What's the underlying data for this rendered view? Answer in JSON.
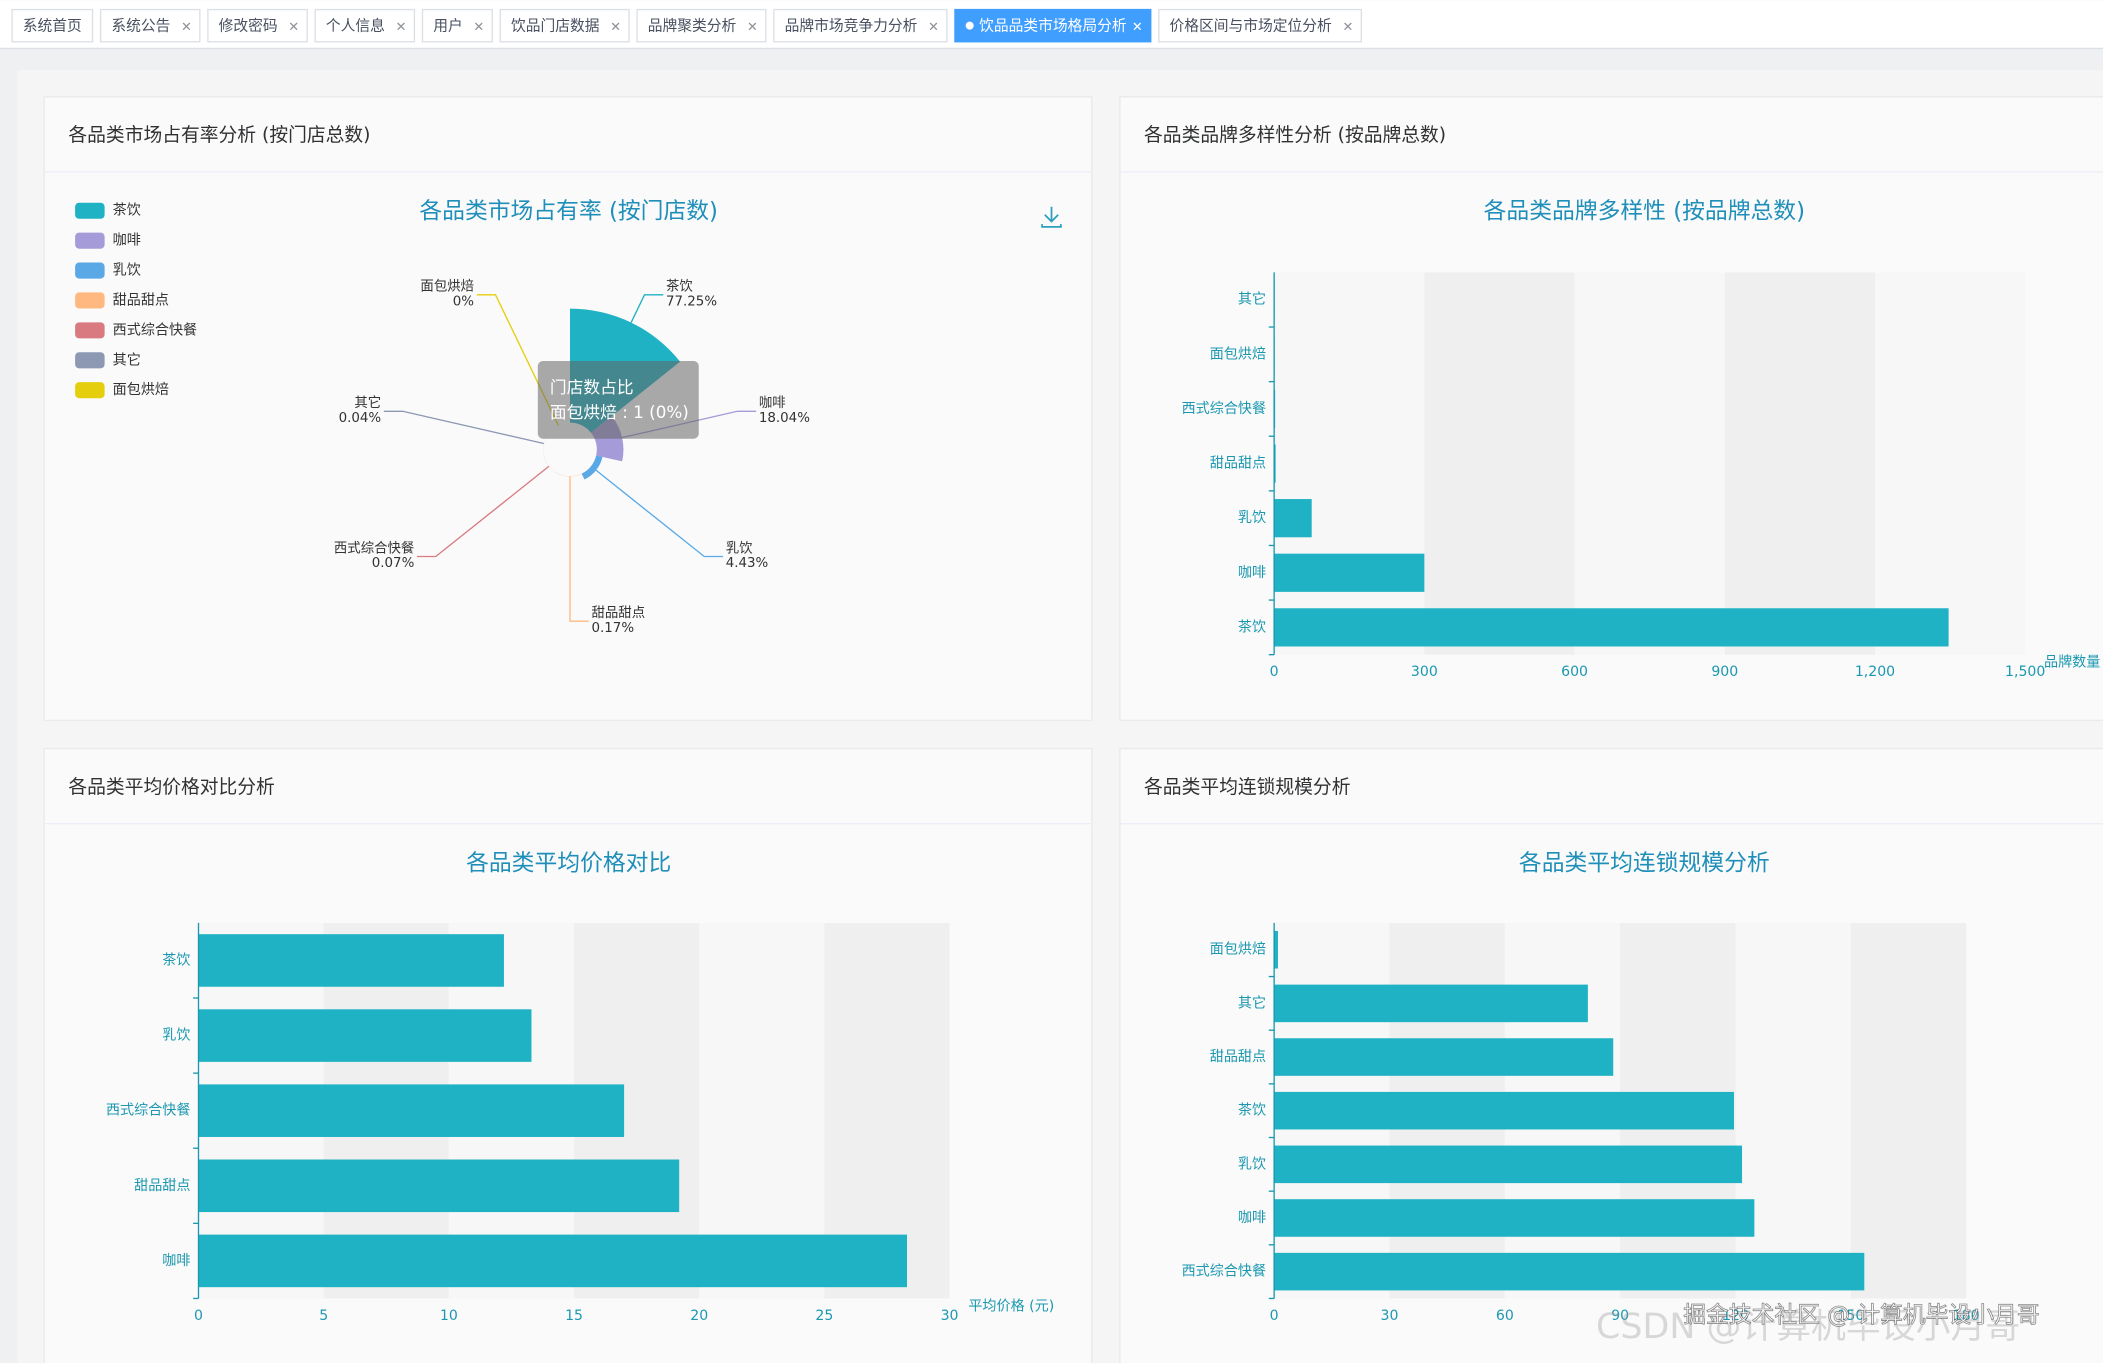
{
  "tabs": [
    {
      "label": "系统首页",
      "closable": false
    },
    {
      "label": "系统公告",
      "closable": true
    },
    {
      "label": "修改密码",
      "closable": true
    },
    {
      "label": "个人信息",
      "closable": true
    },
    {
      "label": "用户",
      "closable": true
    },
    {
      "label": "饮品门店数据",
      "closable": true
    },
    {
      "label": "品牌聚类分析",
      "closable": true
    },
    {
      "label": "品牌市场竞争力分析",
      "closable": true
    },
    {
      "label": "饮品品类市场格局分析",
      "closable": true,
      "active": true
    },
    {
      "label": "价格区间与市场定位分析",
      "closable": true
    }
  ],
  "panels": [
    {
      "title": "各品类市场占有率分析 (按门店总数)"
    },
    {
      "title": "各品类品牌多样性分析 (按品牌总数)"
    },
    {
      "title": "各品类平均价格对比分析"
    },
    {
      "title": "各品类平均连锁规模分析"
    }
  ],
  "chart_data": [
    {
      "type": "pie",
      "rose": true,
      "title": "各品类市场占有率 (按门店数)",
      "legend": "top-left",
      "categories": [
        "茶饮",
        "咖啡",
        "乳饮",
        "甜品甜点",
        "西式综合快餐",
        "其它",
        "面包烘焙"
      ],
      "values": [
        77.25,
        18.04,
        4.43,
        0.17,
        0.07,
        0.04,
        0
      ],
      "value_labels": [
        "77.25%",
        "18.04%",
        "4.43%",
        "0.17%",
        "0.07%",
        "0.04%",
        "0%"
      ],
      "colors": [
        "#1fb2c4",
        "#a59bd8",
        "#5aa9e6",
        "#ffb980",
        "#d87a80",
        "#8d98b3",
        "#e5cf0d"
      ],
      "tooltip": {
        "title": "门店数占比",
        "text": "面包烘焙 : 1 (0%)"
      }
    },
    {
      "type": "bar",
      "orientation": "horizontal",
      "title": "各品类品牌多样性 (按品牌总数)",
      "categories": [
        "茶饮",
        "咖啡",
        "乳饮",
        "甜品甜点",
        "西式综合快餐",
        "面包烘焙",
        "其它"
      ],
      "values": [
        1347,
        300,
        75,
        3,
        2,
        1,
        1
      ],
      "color": "#1fb2c4",
      "xlim": [
        0,
        1500
      ],
      "xticks": [
        0,
        300,
        600,
        900,
        {
          "value": 1200,
          "label": "1,200"
        },
        {
          "value": 1500,
          "label": "1,500"
        }
      ],
      "x_axis_name": "品牌数量",
      "split_area": true
    },
    {
      "type": "bar",
      "orientation": "horizontal",
      "title": "各品类平均价格对比",
      "categories": [
        "咖啡",
        "甜品甜点",
        "西式综合快餐",
        "乳饮",
        "茶饮"
      ],
      "values": [
        28.3,
        19.2,
        17.0,
        13.3,
        12.2
      ],
      "color": "#1fb2c4",
      "xlim": [
        0,
        30
      ],
      "xticks": [
        0,
        5,
        10,
        15,
        20,
        25,
        30
      ],
      "x_axis_name": "平均价格 (元)",
      "split_area": true
    },
    {
      "type": "bar",
      "orientation": "horizontal",
      "title": "各品类平均连锁规模分析",
      "categories": [
        "西式综合快餐",
        "咖啡",
        "乳饮",
        "茶饮",
        "甜品甜点",
        "其它",
        "面包烘焙"
      ],
      "values": [
        153.5,
        124.9,
        121.7,
        119.6,
        88.2,
        81.6,
        1
      ],
      "color": "#1fb2c4",
      "xlim": [
        0,
        180
      ],
      "xticks": [
        0,
        30,
        60,
        90,
        120,
        150,
        180
      ],
      "split_area": true
    }
  ],
  "watermark": [
    "CSDN @计算机毕设小月哥",
    "掘金技术社区 @ 计算机毕设小月哥"
  ]
}
